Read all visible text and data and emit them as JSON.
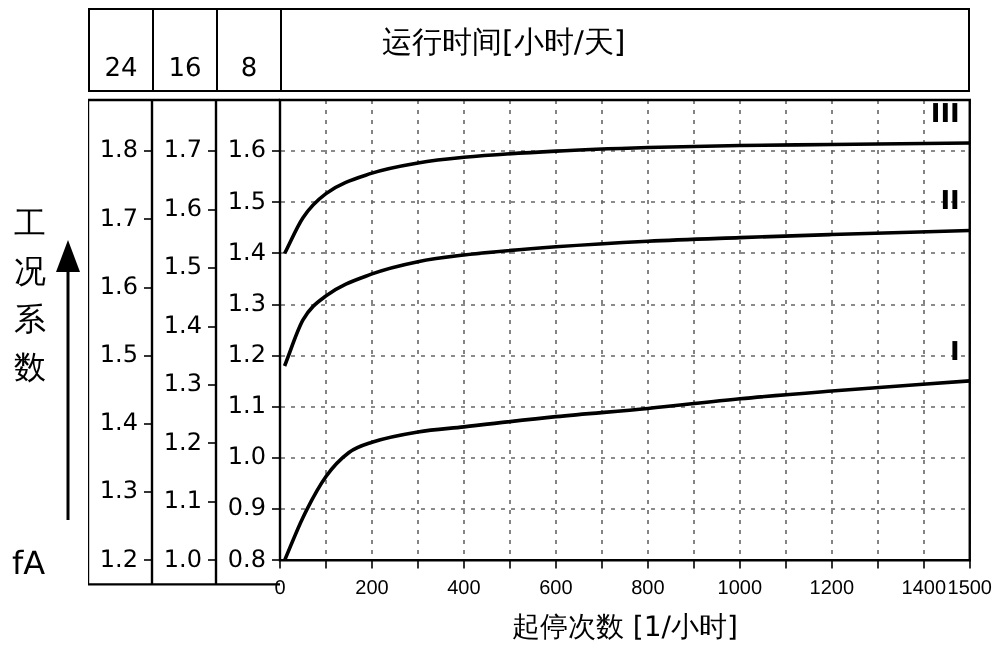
{
  "chart_data": {
    "type": "line",
    "title": "运行时间[小时/天]",
    "xlabel": "起停次数 [1/小时]",
    "ylabel": "8",
    "y2label": "16",
    "y3label": "24",
    "annotations": [
      "工况系数",
      "fA"
    ],
    "xlim": [
      0,
      1500
    ],
    "xticks": [
      0,
      {
        "value": 100,
        "label": null
      },
      200,
      {
        "value": 300,
        "label": null
      },
      400,
      {
        "value": 500,
        "label": null
      },
      600,
      {
        "value": 700,
        "label": null
      },
      800,
      {
        "value": 900,
        "label": null
      },
      1000,
      {
        "value": 1100,
        "label": null
      },
      1200,
      {
        "value": 1300,
        "label": null
      },
      1400,
      1500
    ],
    "ylim": [
      0.8,
      1.7
    ],
    "yticks": [
      0.8,
      0.9,
      {
        "value": 1,
        "label": "1.0"
      },
      1.1,
      1.2,
      1.3,
      1.4,
      1.5,
      1.6,
      {
        "value": 1.7,
        "label": null
      }
    ],
    "y2lim": [
      1.0,
      1.7875
    ],
    "y2ticks": [
      {
        "value": 1,
        "label": "1.0"
      },
      1.1,
      1.2,
      1.3,
      1.4,
      1.5,
      1.6,
      1.7
    ],
    "y3lim": [
      1.2,
      1.875
    ],
    "y3ticks": [
      1.2,
      1.3,
      1.4,
      1.5,
      1.6,
      1.7,
      1.8
    ],
    "grid": true,
    "legend": false,
    "marker": "none",
    "line_style": "solid",
    "series": [
      {
        "name": "III",
        "color": "#000000",
        "x": [
          10,
          50,
          100,
          200,
          300,
          400,
          600,
          800,
          1000,
          1200,
          1500
        ],
        "values": [
          1.4,
          1.47,
          1.517,
          1.557,
          1.577,
          1.588,
          1.6,
          1.607,
          1.611,
          1.613,
          1.616
        ]
      },
      {
        "name": "II",
        "color": "#000000",
        "x": [
          10,
          50,
          100,
          200,
          300,
          400,
          600,
          800,
          1000,
          1200,
          1500
        ],
        "values": [
          1.18,
          1.27,
          1.317,
          1.36,
          1.384,
          1.397,
          1.413,
          1.424,
          1.431,
          1.437,
          1.445
        ]
      },
      {
        "name": "I",
        "color": "#000000",
        "x": [
          10,
          50,
          100,
          150,
          200,
          300,
          400,
          600,
          800,
          1000,
          1200,
          1500
        ],
        "values": [
          0.8,
          0.884,
          0.964,
          1.011,
          1.031,
          1.051,
          1.061,
          1.081,
          1.097,
          1.116,
          1.131,
          1.151
        ]
      }
    ]
  }
}
